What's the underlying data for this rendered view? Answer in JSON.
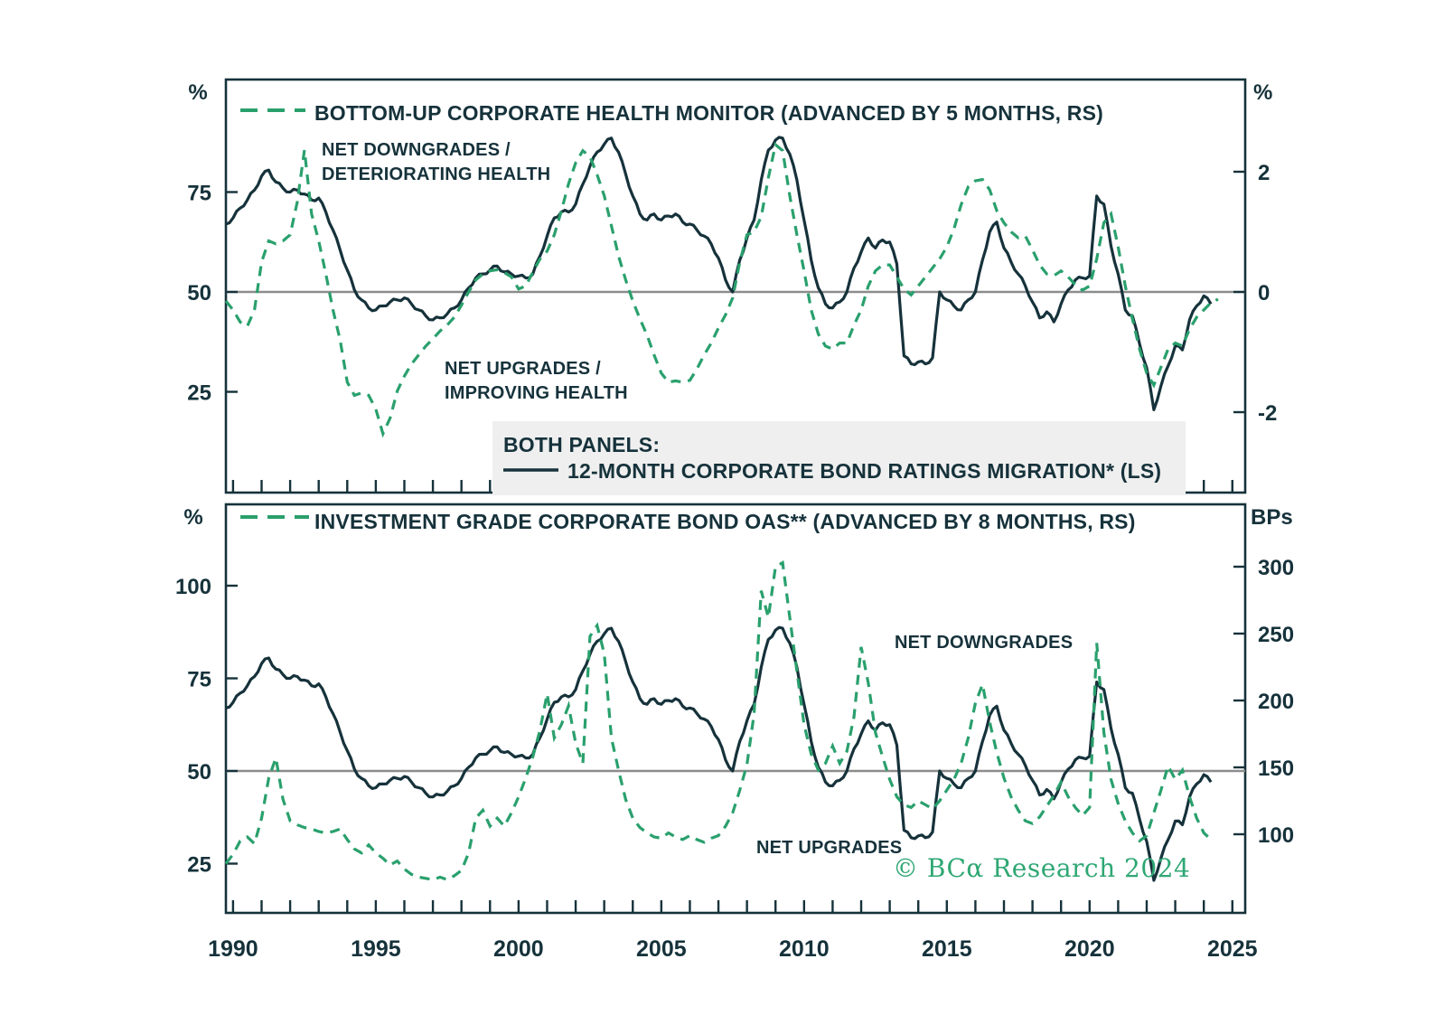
{
  "colors": {
    "ink": "#16323b",
    "green": "#2aa06d",
    "copyright_green": "#2fa774",
    "gray_midline": "#8c8c8c",
    "legend_box_bg": "#efefef",
    "background": "#ffffff"
  },
  "top_panel": {
    "legend": "BOTTOM-UP CORPORATE HEALTH MONITOR (ADVANCED BY 5 MONTHS, RS)",
    "left_unit": "%",
    "right_unit": "%",
    "annotation_downgrades_line1": "NET DOWNGRADES /",
    "annotation_downgrades_line2": "DETERIORATING HEALTH",
    "annotation_upgrades_line1": "NET UPGRADES /",
    "annotation_upgrades_line2": "IMPROVING HEALTH"
  },
  "middle_legend": {
    "title": "BOTH PANELS:",
    "entry": "12-MONTH CORPORATE BOND RATINGS MIGRATION* (LS)"
  },
  "bottom_panel": {
    "legend": "INVESTMENT GRADE CORPORATE BOND OAS** (ADVANCED BY 8 MONTHS, RS)",
    "left_unit": "%",
    "right_unit": "BPs",
    "annotation_downgrades": "NET DOWNGRADES",
    "annotation_upgrades": "NET UPGRADES"
  },
  "copyright": "© BCα Research 2024",
  "chart_data": {
    "type": "line",
    "x_domain": [
      1989.75,
      2025.45
    ],
    "x_axis": {
      "labels": [
        1990,
        1995,
        2000,
        2005,
        2010,
        2015,
        2020,
        2025
      ],
      "tick_from": 1990,
      "tick_to": 2025,
      "tick_step": 1
    },
    "panels": [
      {
        "id": "top",
        "title": "BOTTOM-UP CORPORATE HEALTH MONITOR (ADVANCED BY 5 MONTHS, RS)",
        "left_axis": {
          "unit": "%",
          "ticks": [
            75,
            50,
            25
          ],
          "range": [
            0,
            103
          ]
        },
        "right_axis": {
          "unit": "%",
          "ticks": [
            2,
            0,
            -2
          ],
          "range": [
            -3.4,
            3.5
          ]
        },
        "midline_left_value": 50,
        "lines": [
          {
            "series": "ratings_migration",
            "axis": "left",
            "style": "solid"
          },
          {
            "series": "health_monitor",
            "axis": "right",
            "style": "dashed"
          }
        ]
      },
      {
        "id": "bottom",
        "title": "INVESTMENT GRADE CORPORATE BOND OAS** (ADVANCED BY 8 MONTHS, RS)",
        "left_axis": {
          "unit": "%",
          "ticks": [
            100,
            75,
            50,
            25
          ],
          "range": [
            11,
            122
          ]
        },
        "right_axis": {
          "unit": "BPs",
          "ticks": [
            300,
            250,
            200,
            150,
            100
          ],
          "range": [
            40,
            347
          ]
        },
        "midline_left_value": 50,
        "lines": [
          {
            "series": "ratings_migration",
            "axis": "left",
            "style": "solid"
          },
          {
            "series": "ig_oas",
            "axis": "right",
            "style": "dashed"
          }
        ]
      }
    ],
    "series": {
      "ratings_migration": {
        "label": "12-MONTH CORPORATE BOND RATINGS MIGRATION* (LS)",
        "unit": "%",
        "start": 1989.75,
        "step": 0.25,
        "values": [
          67,
          68.5,
          71,
          73,
          75.5,
          79,
          80.5,
          77.5,
          76,
          75,
          75.5,
          74.5,
          73,
          73.5,
          70,
          65.5,
          60.5,
          55.5,
          50.5,
          48,
          46,
          45.5,
          46.5,
          47.5,
          48,
          48.5,
          47,
          45.5,
          44,
          43,
          43.5,
          44.5,
          46,
          48,
          51,
          53.5,
          54.5,
          55.5,
          56.5,
          55,
          54.5,
          54,
          53.5,
          54.5,
          59,
          64,
          68.5,
          70,
          70,
          72,
          77,
          81.5,
          85,
          87,
          88.5,
          85,
          79.5,
          74,
          69.5,
          68,
          69.5,
          68,
          69,
          69.5,
          67.5,
          67,
          65.5,
          64,
          62,
          58.5,
          53,
          50,
          58,
          63.5,
          68,
          78,
          85.5,
          88,
          88.5,
          84.5,
          78,
          68,
          58,
          51,
          47,
          46,
          47.5,
          50,
          56,
          60,
          63.5,
          61,
          63,
          62.5,
          57,
          34,
          32,
          32.5,
          32,
          33.5,
          50,
          48,
          46.5,
          45.5,
          48,
          50,
          58,
          65,
          67.5,
          61,
          57.5,
          54.5,
          51.5,
          47.5,
          43.5,
          45,
          42.5,
          47,
          50.5,
          53,
          53.5,
          54,
          74,
          72,
          61.5,
          54.5,
          45.5,
          44,
          37,
          31,
          20.5,
          26.5,
          31.5,
          36.5,
          35.5,
          43,
          46.5,
          49,
          47
        ]
      },
      "health_monitor": {
        "label": "BOTTOM-UP CORPORATE HEALTH MONITOR (ADVANCED BY 5 MONTHS, RS)",
        "unit": "%",
        "start": 1989.75,
        "step": 0.25,
        "values": [
          -0.15,
          -0.3,
          -0.5,
          -0.57,
          -0.3,
          0.5,
          0.85,
          0.8,
          0.85,
          0.95,
          1.5,
          2.36,
          1.3,
          0.85,
          0.3,
          -0.3,
          -0.8,
          -1.5,
          -1.72,
          -1.68,
          -1.72,
          -1.95,
          -2.36,
          -2.1,
          -1.65,
          -1.4,
          -1.2,
          -1.05,
          -0.9,
          -0.78,
          -0.65,
          -0.55,
          -0.42,
          -0.22,
          0.0,
          0.2,
          0.3,
          0.35,
          0.37,
          0.32,
          0.25,
          0.05,
          0.1,
          0.33,
          0.55,
          0.68,
          0.95,
          1.35,
          1.8,
          2.15,
          2.35,
          2.25,
          1.95,
          1.6,
          1.1,
          0.6,
          0.2,
          -0.15,
          -0.45,
          -0.72,
          -1.05,
          -1.35,
          -1.5,
          -1.48,
          -1.5,
          -1.47,
          -1.28,
          -1.05,
          -0.85,
          -0.6,
          -0.38,
          -0.1,
          0.5,
          0.95,
          1.0,
          1.25,
          1.9,
          2.45,
          2.35,
          1.6,
          0.95,
          0.35,
          -0.3,
          -0.7,
          -0.9,
          -0.95,
          -0.85,
          -0.85,
          -0.55,
          -0.3,
          0.1,
          0.35,
          0.45,
          0.45,
          0.25,
          0.05,
          -0.05,
          0.1,
          0.25,
          0.4,
          0.55,
          0.75,
          1.05,
          1.45,
          1.75,
          1.85,
          1.87,
          1.7,
          1.35,
          1.15,
          1.0,
          0.9,
          0.93,
          0.7,
          0.45,
          0.3,
          0.27,
          0.35,
          0.25,
          0.12,
          0.03,
          0.1,
          0.55,
          1.15,
          1.3,
          0.75,
          0.1,
          -0.45,
          -0.95,
          -1.35,
          -1.55,
          -1.25,
          -0.95,
          -0.85,
          -0.9,
          -0.62,
          -0.42,
          -0.3,
          -0.18,
          -0.12
        ]
      },
      "ig_oas": {
        "label": "INVESTMENT GRADE CORPORATE BOND OAS** (ADVANCED BY 8 MONTHS, RS)",
        "unit": "BPs",
        "start": 1989.75,
        "step": 0.25,
        "values": [
          78,
          85,
          95,
          98,
          93,
          112,
          142,
          157,
          126,
          110,
          107,
          105,
          104,
          102,
          101,
          102,
          104,
          96,
          89,
          86,
          92,
          86,
          82,
          77,
          80,
          74,
          70,
          68,
          67,
          66,
          68,
          66,
          69,
          73,
          86,
          112,
          118,
          106,
          112,
          106,
          116,
          128,
          142,
          158,
          178,
          205,
          172,
          182,
          196,
          168,
          153,
          248,
          256,
          235,
          172,
          148,
          126,
          112,
          105,
          101,
          98,
          97,
          101,
          98,
          96,
          99,
          96,
          94,
          97,
          99,
          106,
          116,
          133,
          152,
          190,
          282,
          262,
          300,
          303,
          262,
          222,
          182,
          160,
          148,
          153,
          166,
          153,
          162,
          188,
          240,
          213,
          176,
          158,
          141,
          128,
          122,
          120,
          125,
          122,
          119,
          125,
          133,
          141,
          153,
          172,
          198,
          212,
          184,
          161,
          142,
          128,
          118,
          110,
          108,
          113,
          121,
          129,
          139,
          128,
          120,
          114,
          120,
          243,
          176,
          141,
          123,
          110,
          101,
          95,
          99,
          116,
          133,
          151,
          141,
          148,
          128,
          112,
          101,
          96
        ]
      }
    }
  }
}
